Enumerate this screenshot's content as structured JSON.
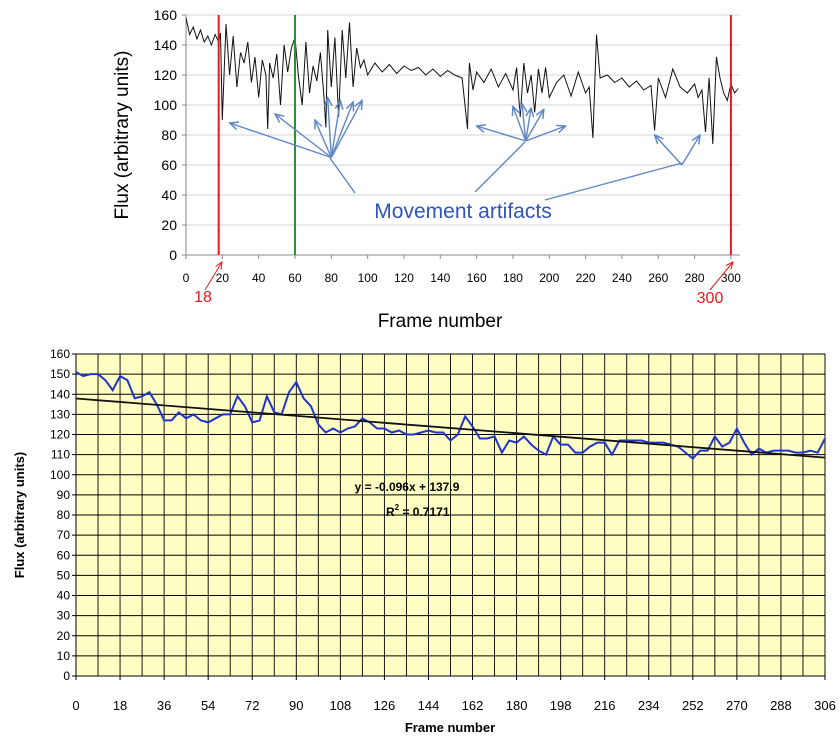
{
  "chart_data": [
    {
      "type": "line",
      "xlabel": "Frame number",
      "ylabel": "Flux (arbitrary units)",
      "xlim": [
        0,
        305
      ],
      "ylim": [
        0,
        160
      ],
      "x_ticks": [
        0,
        20,
        40,
        60,
        80,
        100,
        120,
        140,
        160,
        180,
        200,
        220,
        240,
        260,
        280,
        300
      ],
      "y_ticks": [
        0,
        20,
        40,
        60,
        80,
        100,
        120,
        140,
        160
      ],
      "grid": "horizontal",
      "line_color": "#111111",
      "series": [
        {
          "x": [
            0,
            2,
            4,
            6,
            8,
            10,
            12,
            14,
            16,
            18,
            19,
            20,
            22,
            24,
            26,
            28,
            30,
            32,
            34,
            36,
            38,
            40,
            42,
            44,
            45,
            46,
            48,
            50,
            52,
            54,
            56,
            58,
            60,
            62,
            64,
            66,
            68,
            70,
            72,
            74,
            76,
            77,
            78,
            80,
            82,
            84,
            86,
            88,
            90,
            92,
            94,
            96,
            98,
            100,
            104,
            108,
            112,
            116,
            120,
            124,
            128,
            132,
            136,
            140,
            144,
            148,
            152,
            155,
            156,
            158,
            160,
            164,
            168,
            172,
            176,
            180,
            182,
            184,
            186,
            188,
            190,
            192,
            194,
            196,
            198,
            200,
            204,
            208,
            212,
            216,
            220,
            222,
            224,
            226,
            228,
            232,
            236,
            240,
            244,
            248,
            252,
            256,
            258,
            260,
            264,
            268,
            272,
            276,
            280,
            282,
            284,
            286,
            288,
            290,
            292,
            294,
            296,
            298,
            300,
            302,
            304
          ],
          "y": [
            158,
            147,
            152,
            144,
            150,
            142,
            146,
            140,
            147,
            142,
            148,
            90,
            154,
            120,
            146,
            112,
            135,
            128,
            142,
            115,
            132,
            105,
            130,
            120,
            84,
            128,
            118,
            134,
            100,
            140,
            122,
            138,
            145,
            118,
            100,
            142,
            108,
            126,
            116,
            135,
            105,
            85,
            150,
            112,
            145,
            92,
            150,
            118,
            155,
            112,
            138,
            125,
            130,
            120,
            128,
            122,
            127,
            121,
            126,
            123,
            125,
            120,
            124,
            119,
            123,
            120,
            118,
            84,
            128,
            110,
            122,
            115,
            124,
            112,
            121,
            110,
            125,
            92,
            128,
            108,
            120,
            95,
            124,
            108,
            125,
            105,
            115,
            120,
            106,
            122,
            108,
            112,
            78,
            147,
            118,
            120,
            115,
            118,
            112,
            116,
            110,
            113,
            83,
            118,
            105,
            124,
            112,
            108,
            114,
            105,
            110,
            82,
            118,
            74,
            132,
            118,
            108,
            103,
            114,
            108,
            111
          ]
        }
      ],
      "markers": [
        {
          "x": 18,
          "color": "#e41a1c",
          "label": "18"
        },
        {
          "x": 60,
          "color": "#169b2c"
        },
        {
          "x": 300,
          "color": "#e41a1c",
          "label": "300"
        }
      ],
      "annotation": {
        "text": "Movement artifacts",
        "color": "#2e55b8",
        "arrow_color": "#5f87c6",
        "arrow_targets": [
          {
            "from": [
              80,
              65
            ],
            "to": [
              24,
              88
            ]
          },
          {
            "from": [
              80,
              65
            ],
            "to": [
              49,
              94
            ]
          },
          {
            "from": [
              80,
              65
            ],
            "to": [
              71,
              90
            ]
          },
          {
            "from": [
              80,
              65
            ],
            "to": [
              78,
              105
            ]
          },
          {
            "from": [
              80,
              65
            ],
            "to": [
              85,
              103
            ]
          },
          {
            "from": [
              80,
              65
            ],
            "to": [
              92,
              102
            ]
          },
          {
            "from": [
              80,
              65
            ],
            "to": [
              97,
              103
            ]
          },
          {
            "from": [
              187,
              76
            ],
            "to": [
              160,
              86
            ]
          },
          {
            "from": [
              187,
              76
            ],
            "to": [
              180,
              99
            ]
          },
          {
            "from": [
              187,
              76
            ],
            "to": [
              185,
              101
            ]
          },
          {
            "from": [
              187,
              76
            ],
            "to": [
              190,
              98
            ]
          },
          {
            "from": [
              187,
              76
            ],
            "to": [
              197,
              97
            ]
          },
          {
            "from": [
              187,
              76
            ],
            "to": [
              209,
              86
            ]
          },
          {
            "from": [
              273,
              60
            ],
            "to": [
              258,
              80
            ]
          },
          {
            "from": [
              273,
              60
            ],
            "to": [
              283,
              80
            ]
          }
        ]
      }
    },
    {
      "type": "line",
      "xlabel": "Frame number",
      "ylabel": "Flux (arbitrary units)",
      "xlim": [
        0,
        306
      ],
      "ylim": [
        0,
        160
      ],
      "x_ticks": [
        0,
        18,
        36,
        54,
        72,
        90,
        108,
        126,
        144,
        162,
        180,
        198,
        216,
        234,
        252,
        270,
        288,
        306
      ],
      "y_ticks": [
        0,
        10,
        20,
        30,
        40,
        50,
        60,
        70,
        80,
        90,
        100,
        110,
        120,
        130,
        140,
        150,
        160
      ],
      "grid": "both",
      "background": "#ffffc4",
      "line_color": "#2134c9",
      "trend_color": "#111111",
      "series": [
        {
          "x": [
            0,
            3,
            6,
            9,
            12,
            15,
            18,
            21,
            24,
            27,
            30,
            33,
            36,
            39,
            42,
            45,
            48,
            51,
            54,
            57,
            60,
            63,
            66,
            69,
            72,
            75,
            78,
            81,
            84,
            87,
            90,
            93,
            96,
            99,
            102,
            105,
            108,
            111,
            114,
            117,
            120,
            123,
            126,
            129,
            132,
            135,
            138,
            141,
            144,
            147,
            150,
            153,
            156,
            159,
            162,
            165,
            168,
            171,
            174,
            177,
            180,
            183,
            186,
            189,
            192,
            195,
            198,
            201,
            204,
            207,
            210,
            213,
            216,
            219,
            222,
            225,
            228,
            231,
            234,
            237,
            240,
            243,
            246,
            249,
            252,
            255,
            258,
            261,
            264,
            267,
            270,
            273,
            276,
            279,
            282,
            285,
            288,
            291,
            294,
            297,
            300,
            303,
            306
          ],
          "y": [
            151,
            149,
            150,
            150,
            147,
            142,
            149,
            147,
            138,
            139,
            141,
            135,
            127,
            127,
            131,
            128,
            130,
            127,
            126,
            128,
            130,
            130,
            139,
            134,
            126,
            127,
            139,
            131,
            130,
            141,
            146,
            138,
            134,
            125,
            121,
            123,
            121,
            123,
            124,
            128,
            126,
            123,
            123,
            121,
            122,
            120,
            120,
            121,
            122,
            121,
            121,
            117,
            120,
            129,
            124,
            118,
            118,
            119,
            111,
            117,
            116,
            119,
            115,
            112,
            110,
            119,
            115,
            115,
            111,
            111,
            114,
            116,
            116,
            110,
            117,
            117,
            117,
            117,
            116,
            116,
            116,
            115,
            114,
            111,
            108,
            112,
            112,
            119,
            114,
            116,
            123,
            116,
            110,
            113,
            111,
            112,
            112,
            112,
            111,
            111,
            112,
            111,
            118
          ]
        }
      ],
      "trendline": {
        "slope": -0.096,
        "intercept": 137.9,
        "equation": "y = -0.096x + 137.9",
        "r2_label": "R",
        "r2_sup": "2",
        "r2_value": " = 0.7171"
      }
    }
  ]
}
